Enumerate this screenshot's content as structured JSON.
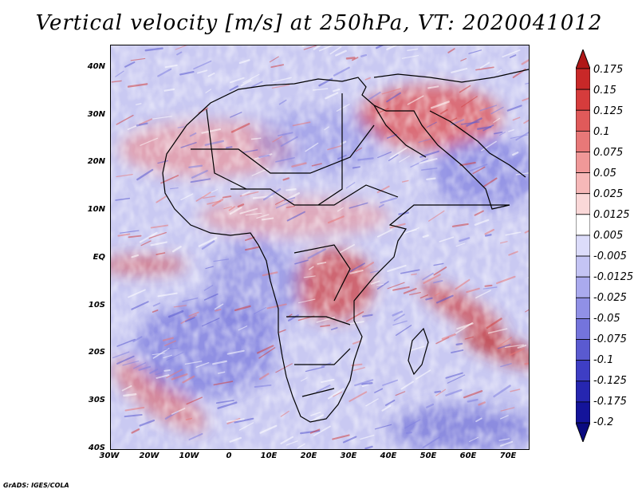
{
  "title": "Vertical velocity [m/s] at 250hPa, VT: 2020041012",
  "credit": "GrADS: IGES/COLA",
  "map": {
    "lon_range": [
      -30,
      75
    ],
    "lat_range": [
      -40,
      45
    ],
    "y_ticks": [
      "40N",
      "30N",
      "20N",
      "10N",
      "EQ",
      "10S",
      "20S",
      "30S",
      "40S"
    ],
    "x_ticks": [
      "30W",
      "20W",
      "10W",
      "0",
      "10E",
      "20E",
      "30E",
      "40E",
      "50E",
      "60E",
      "70E"
    ]
  },
  "colorbar": {
    "labels": [
      "0.175",
      "0.15",
      "0.125",
      "0.1",
      "0.075",
      "0.05",
      "0.025",
      "0.0125",
      "0.005",
      "-0.005",
      "-0.0125",
      "-0.025",
      "-0.05",
      "-0.075",
      "-0.1",
      "-0.125",
      "-0.175",
      "-0.2"
    ],
    "colors": [
      "#b01818",
      "#c82828",
      "#d63c3c",
      "#e05a5a",
      "#e87878",
      "#f09898",
      "#f6b8b8",
      "#fad8d8",
      "#ffffff",
      "#dcdcfa",
      "#c4c4f4",
      "#aaaaee",
      "#9090e6",
      "#7474dc",
      "#5a5ad0",
      "#3e3ec4",
      "#2626b0",
      "#14149a",
      "#0a0a80"
    ]
  }
}
